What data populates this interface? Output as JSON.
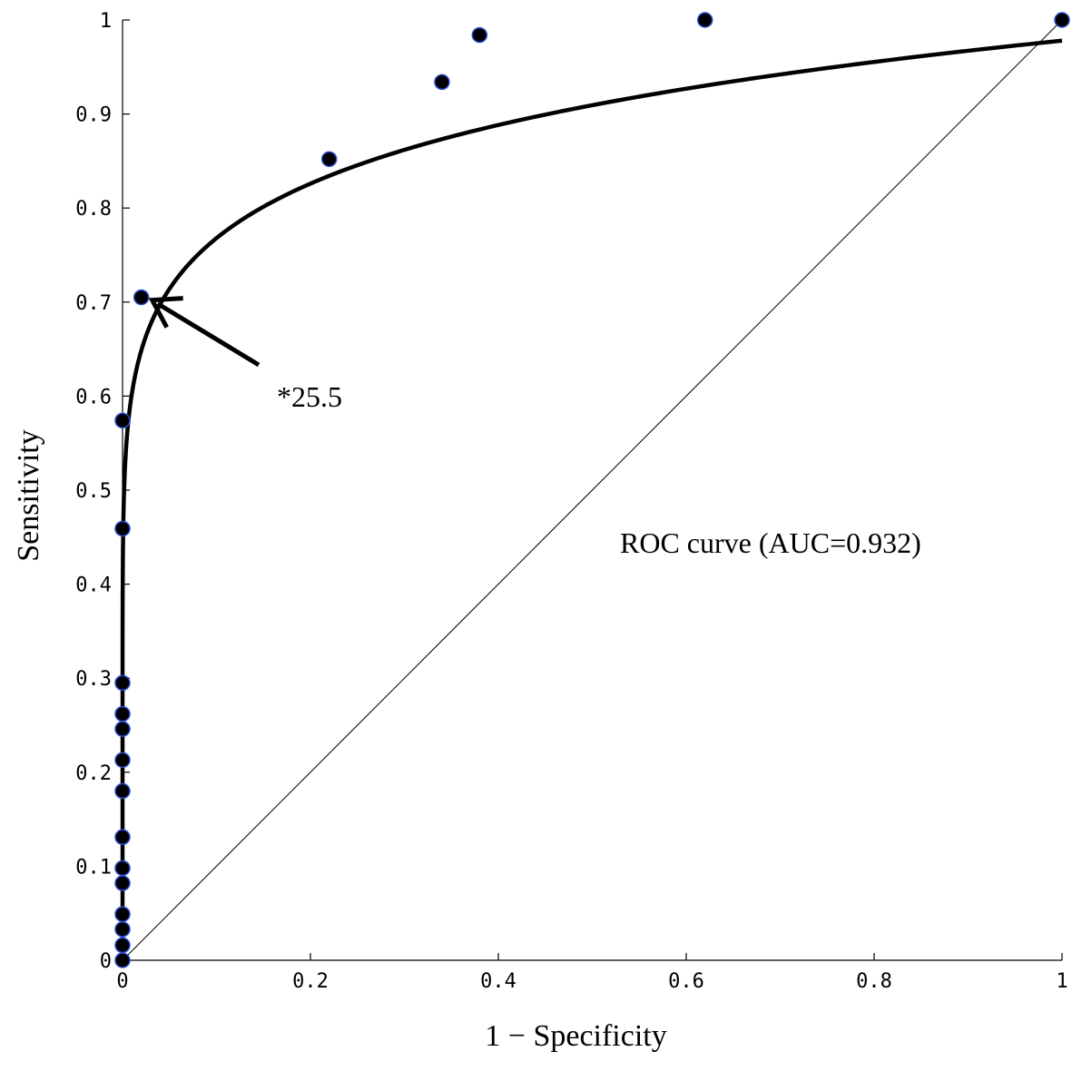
{
  "chart_data": {
    "type": "scatter",
    "xlabel": "1 − Specificity",
    "ylabel": "Sensitivity",
    "xlim": [
      0,
      1
    ],
    "ylim": [
      0,
      1
    ],
    "xticks": [
      "0",
      "0.2",
      "0.4",
      "0.6",
      "0.8",
      "1"
    ],
    "yticks": [
      "0",
      "0.1",
      "0.2",
      "0.3",
      "0.4",
      "0.5",
      "0.6",
      "0.7",
      "0.8",
      "0.9",
      "1"
    ],
    "grid": false,
    "series": [
      {
        "points": [
          [
            0,
            0
          ],
          [
            0,
            0.016
          ],
          [
            0,
            0.033
          ],
          [
            0,
            0.049
          ],
          [
            0,
            0.082
          ],
          [
            0,
            0.098
          ],
          [
            0,
            0.131
          ],
          [
            0,
            0.18
          ],
          [
            0,
            0.213
          ],
          [
            0,
            0.246
          ],
          [
            0,
            0.262
          ],
          [
            0,
            0.295
          ],
          [
            0,
            0.459
          ],
          [
            0,
            0.574
          ],
          [
            0.02,
            0.705
          ],
          [
            0.22,
            0.852
          ],
          [
            0.34,
            0.934
          ],
          [
            0.38,
            0.984
          ],
          [
            0.62,
            1.0
          ],
          [
            1.0,
            1.0
          ]
        ]
      }
    ],
    "curve_point_count": 240,
    "annotations": {
      "cutoff_label": "*25.5",
      "cutoff_point": [
        0.02,
        0.705
      ],
      "curve_label": "ROC curve (AUC=0.932)"
    },
    "colors": {
      "marker_fill": "#000000",
      "marker_edge": "#2b4fd6",
      "line": "#000000"
    }
  }
}
